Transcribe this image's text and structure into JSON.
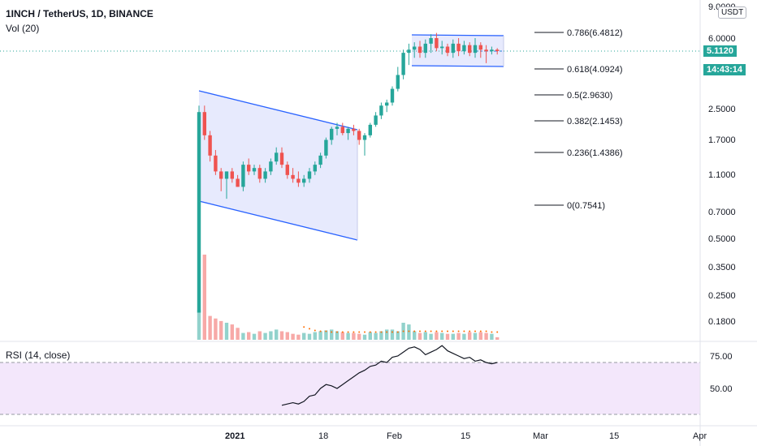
{
  "header": {
    "symbol": "1INCH / TetherUS, 1D, BINANCE",
    "volume_label": "Vol (20)",
    "rsi_label": "RSI (14, close)"
  },
  "price_axis": {
    "currency": "USDT",
    "ticks": [
      "9.0000",
      "6.0000",
      "2.5000",
      "1.7000",
      "1.1000",
      "0.7000",
      "0.5000",
      "0.3500",
      "0.2500",
      "0.1800"
    ],
    "current_price": "5.1120",
    "countdown": "14:43:14"
  },
  "rsi_axis": {
    "ticks": [
      "75.00",
      "50.00"
    ]
  },
  "time_axis": {
    "ticks": [
      "2021",
      "18",
      "Feb",
      "15",
      "Mar",
      "15",
      "Apr"
    ]
  },
  "fib_levels": [
    {
      "label": "0.786(6.4812)"
    },
    {
      "label": "0.618(4.0924)"
    },
    {
      "label": "0.5(2.9630)"
    },
    {
      "label": "0.382(2.1453)"
    },
    {
      "label": "0.236(1.4386)"
    },
    {
      "label": "0(0.7541)"
    }
  ],
  "colors": {
    "up": "#26a69a",
    "down": "#ef5350",
    "channel": "#2962ff",
    "channel_fill": "#e3e6fd",
    "rsi_band": "#f3e7fb",
    "price_line": "#26a69a",
    "countdown_bg": "#26a69a"
  },
  "chart_data": {
    "type": "candlestick",
    "title": "1INCH / TetherUS, 1D, BINANCE",
    "scale": "log",
    "ylim": [
      0.16,
      9.0
    ],
    "x_dates": [
      "2020-12-25",
      "2020-12-26",
      "2020-12-27",
      "2020-12-28",
      "2020-12-29",
      "2020-12-30",
      "2020-12-31",
      "2021-01-01",
      "2021-01-02",
      "2021-01-03",
      "2021-01-04",
      "2021-01-05",
      "2021-01-06",
      "2021-01-07",
      "2021-01-08",
      "2021-01-09",
      "2021-01-10",
      "2021-01-11",
      "2021-01-12",
      "2021-01-13",
      "2021-01-14",
      "2021-01-15",
      "2021-01-16",
      "2021-01-17",
      "2021-01-18",
      "2021-01-19",
      "2021-01-20",
      "2021-01-21",
      "2021-01-22",
      "2021-01-23",
      "2021-01-24",
      "2021-01-25",
      "2021-01-26",
      "2021-01-27",
      "2021-01-28",
      "2021-01-29",
      "2021-01-30",
      "2021-01-31",
      "2021-02-01",
      "2021-02-02",
      "2021-02-03",
      "2021-02-04",
      "2021-02-05",
      "2021-02-06",
      "2021-02-07",
      "2021-02-08",
      "2021-02-09",
      "2021-02-10",
      "2021-02-11",
      "2021-02-12",
      "2021-02-13",
      "2021-02-14",
      "2021-02-15",
      "2021-02-16",
      "2021-02-17"
    ],
    "open": [
      0.2,
      2.4,
      1.8,
      1.4,
      1.15,
      1.05,
      1.15,
      1.05,
      0.95,
      1.25,
      1.15,
      1.2,
      1.05,
      1.15,
      1.3,
      1.45,
      1.25,
      1.1,
      1.05,
      1.0,
      1.05,
      1.15,
      1.25,
      1.4,
      1.7,
      1.95,
      2.0,
      1.85,
      1.95,
      1.9,
      1.7,
      1.8,
      2.05,
      2.3,
      2.6,
      2.7,
      3.2,
      3.8,
      5.0,
      5.2,
      5.4,
      5.0,
      5.6,
      6.0,
      5.3,
      5.4,
      5.0,
      5.6,
      5.1,
      5.5,
      5.0,
      5.5,
      5.2,
      5.1,
      5.2
    ],
    "high": [
      2.6,
      2.6,
      1.9,
      1.5,
      1.2,
      1.15,
      1.2,
      1.1,
      1.3,
      1.35,
      1.25,
      1.25,
      1.2,
      1.35,
      1.55,
      1.55,
      1.3,
      1.2,
      1.15,
      1.1,
      1.2,
      1.3,
      1.45,
      1.75,
      2.0,
      2.1,
      2.1,
      2.0,
      2.05,
      1.95,
      1.85,
      2.1,
      2.4,
      2.7,
      2.8,
      3.3,
      4.2,
      5.2,
      5.6,
      5.7,
      5.8,
      5.9,
      6.3,
      6.4,
      5.8,
      5.6,
      5.9,
      6.0,
      5.8,
      5.7,
      6.0,
      5.7,
      5.5,
      5.4,
      5.3
    ],
    "low": [
      0.2,
      1.7,
      1.3,
      1.1,
      0.9,
      0.82,
      1.0,
      0.95,
      0.9,
      1.1,
      1.1,
      1.0,
      1.0,
      1.1,
      1.25,
      1.2,
      1.05,
      1.0,
      0.95,
      0.95,
      1.0,
      1.1,
      1.2,
      1.35,
      1.6,
      1.8,
      1.8,
      1.7,
      1.8,
      1.6,
      1.4,
      1.75,
      2.0,
      2.2,
      2.4,
      2.6,
      3.1,
      3.6,
      4.3,
      4.7,
      4.7,
      4.7,
      5.0,
      5.1,
      4.9,
      4.8,
      4.7,
      4.8,
      4.9,
      4.8,
      4.7,
      4.7,
      4.4,
      4.9,
      4.9
    ],
    "close": [
      2.4,
      1.8,
      1.4,
      1.15,
      1.05,
      1.15,
      1.05,
      0.95,
      1.25,
      1.15,
      1.2,
      1.05,
      1.15,
      1.3,
      1.45,
      1.25,
      1.1,
      1.05,
      1.0,
      1.05,
      1.15,
      1.25,
      1.4,
      1.7,
      1.95,
      2.0,
      1.85,
      1.95,
      1.9,
      1.7,
      1.8,
      2.05,
      2.3,
      2.6,
      2.7,
      3.2,
      3.8,
      5.0,
      5.2,
      5.4,
      5.0,
      5.6,
      6.0,
      5.3,
      5.4,
      5.0,
      5.6,
      5.1,
      5.5,
      5.0,
      5.5,
      5.2,
      5.1,
      5.2,
      5.11
    ],
    "volume": [
      0.35,
      1.0,
      0.28,
      0.25,
      0.22,
      0.2,
      0.18,
      0.14,
      0.08,
      0.09,
      0.07,
      0.1,
      0.08,
      0.1,
      0.12,
      0.1,
      0.09,
      0.07,
      0.06,
      0.08,
      0.07,
      0.09,
      0.1,
      0.11,
      0.12,
      0.1,
      0.09,
      0.08,
      0.08,
      0.07,
      0.06,
      0.09,
      0.08,
      0.1,
      0.12,
      0.12,
      0.1,
      0.2,
      0.18,
      0.1,
      0.08,
      0.09,
      0.07,
      0.09,
      0.08,
      0.07,
      0.07,
      0.08,
      0.07,
      0.09,
      0.08,
      0.09,
      0.08,
      0.07,
      0.03
    ],
    "volume_ma": [
      null,
      null,
      null,
      null,
      null,
      null,
      null,
      null,
      null,
      null,
      null,
      null,
      null,
      null,
      null,
      null,
      null,
      null,
      null,
      0.15,
      0.13,
      0.11,
      0.1,
      0.1,
      0.09,
      0.09,
      0.09,
      0.09,
      0.09,
      0.09,
      0.09,
      0.09,
      0.09,
      0.09,
      0.09,
      0.09,
      0.09,
      0.1,
      0.1,
      0.1,
      0.1,
      0.1,
      0.1,
      0.1,
      0.1,
      0.1,
      0.1,
      0.1,
      0.1,
      0.1,
      0.1,
      0.1,
      0.1,
      0.09,
      0.09
    ],
    "rsi": [
      null,
      null,
      null,
      null,
      null,
      null,
      null,
      null,
      null,
      null,
      null,
      null,
      null,
      null,
      null,
      37,
      38,
      39,
      38,
      40,
      44,
      45,
      50,
      53,
      52,
      50,
      53,
      56,
      59,
      62,
      64,
      67,
      68,
      71,
      70,
      74,
      75,
      78,
      81,
      82,
      80,
      76,
      78,
      80,
      83,
      79,
      77,
      75,
      73,
      74,
      71,
      72,
      70,
      69,
      70
    ]
  }
}
